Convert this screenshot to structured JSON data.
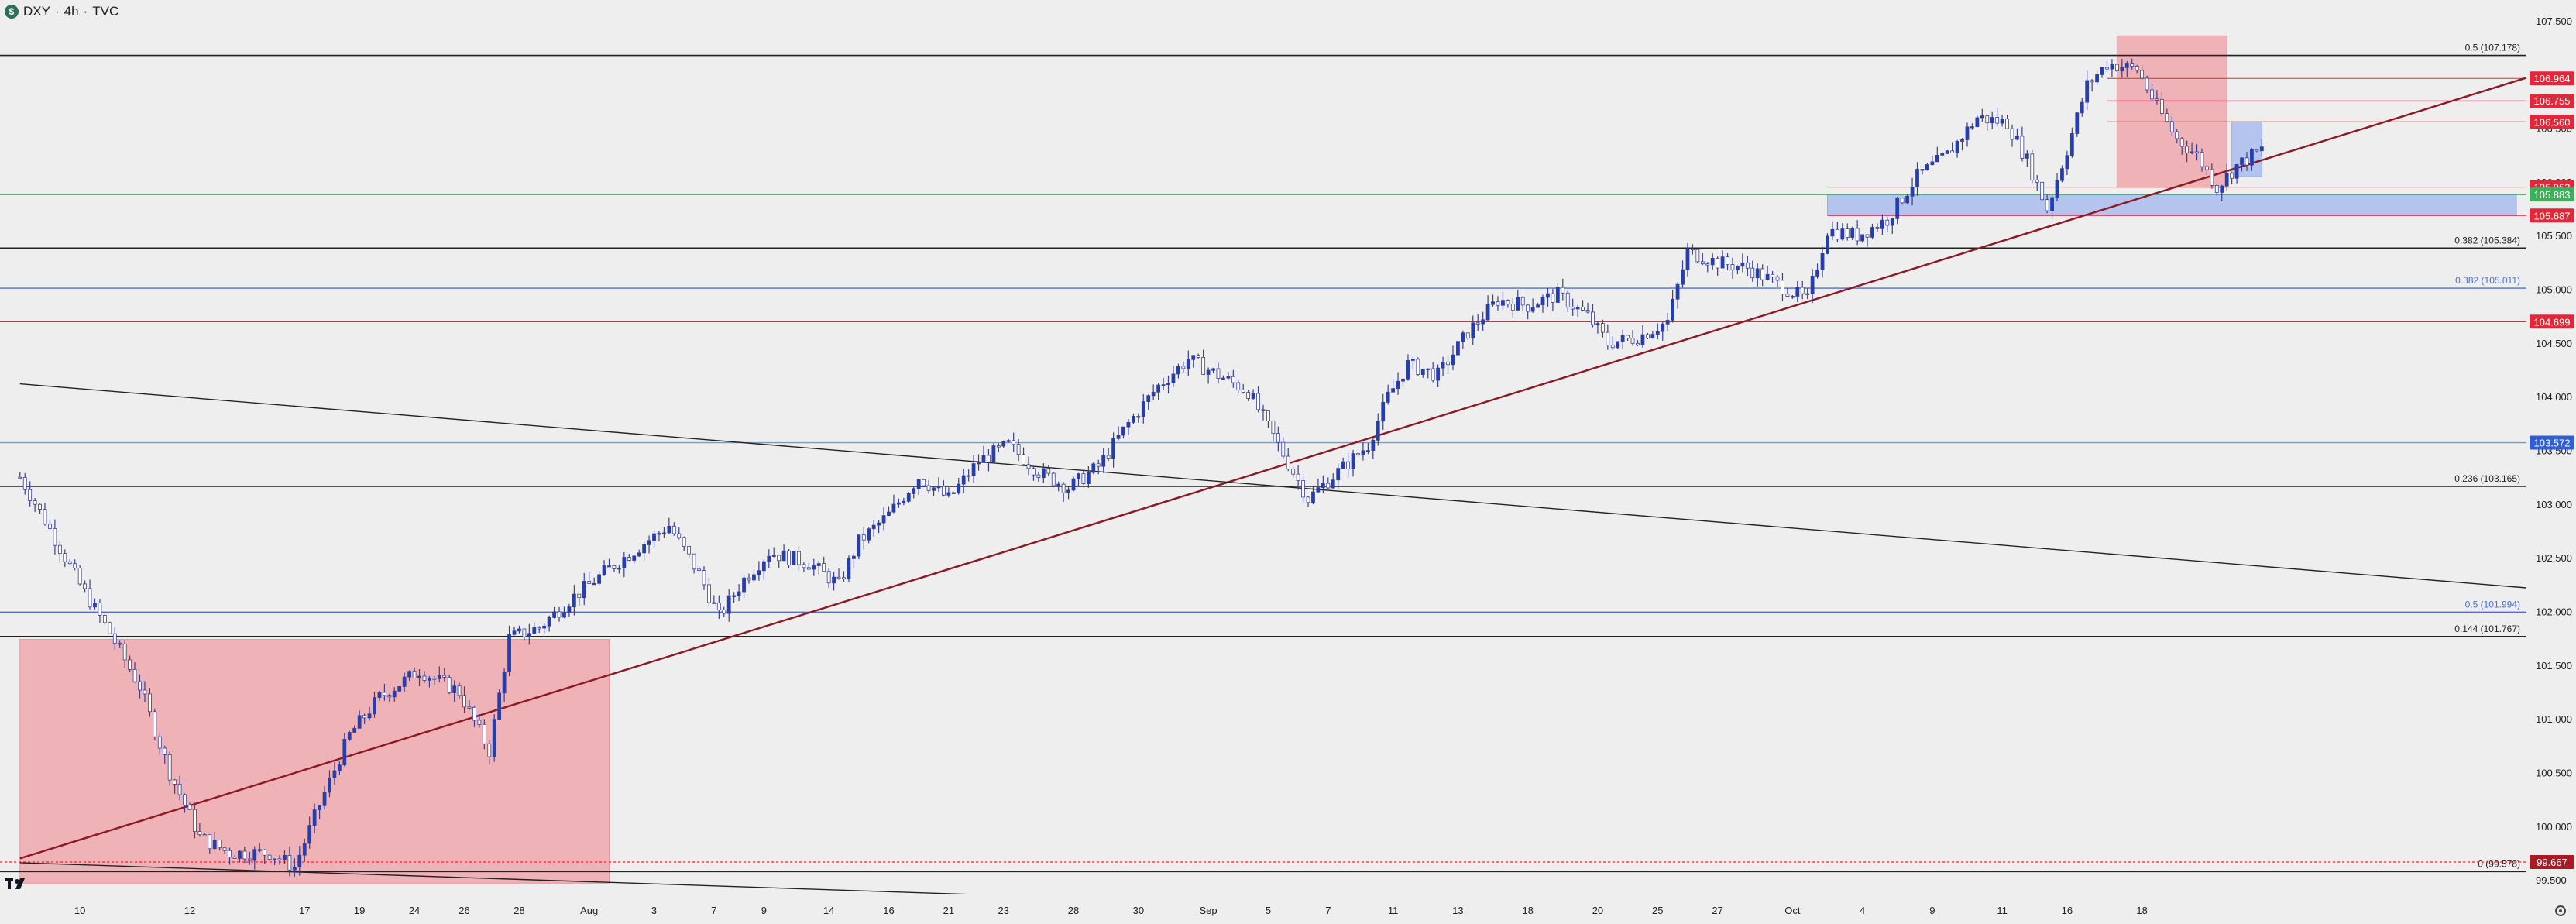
{
  "header": {
    "logo": "$",
    "symbol": "DXY",
    "separator1": "·",
    "timeframe": "4h",
    "separator2": "·",
    "source": "TVC"
  },
  "icons": {
    "watermark": "tradingview-logo-icon",
    "settings": "gear-icon"
  },
  "colors": {
    "background": "#eeeeee",
    "up_candle": "#1e3fb8",
    "down_candle": "#ffffff",
    "candle_outline": "#3a3f8f",
    "zone_red": "#f08a93",
    "zone_blue": "#8fa8ee",
    "trendline_maroon": "#8b1a24",
    "fib_black": "#222222",
    "fib_blue": "#4a6fd6",
    "level_red": "#e0283a",
    "level_green": "#3fae5a",
    "axis_text": "#222222"
  },
  "chart_data": {
    "type": "candlestick",
    "title": "DXY · 4h · TVC",
    "xlabel": "",
    "ylabel": "",
    "ylim": [
      99.4,
      107.55
    ],
    "grid": false,
    "x_ticks": [
      "10",
      "12",
      "17",
      "19",
      "24",
      "26",
      "28",
      "Aug",
      "3",
      "7",
      "9",
      "14",
      "16",
      "21",
      "23",
      "28",
      "30",
      "Sep",
      "5",
      "7",
      "11",
      "13",
      "18",
      "20",
      "25",
      "27",
      "Oct",
      "4",
      "9",
      "11",
      "16",
      "18"
    ],
    "y_ticks": [
      "107.500",
      "107.000",
      "106.500",
      "106.000",
      "105.500",
      "105.000",
      "104.500",
      "104.000",
      "103.500",
      "103.000",
      "102.500",
      "102.000",
      "101.500",
      "101.000",
      "100.500",
      "100.000",
      "99.500"
    ],
    "horizontal_levels": [
      {
        "price": 107.178,
        "label": "0.5 (107.178)",
        "color": "#222222"
      },
      {
        "price": 105.384,
        "label": "0.382 (105.384)",
        "color": "#222222"
      },
      {
        "price": 105.011,
        "label": "0.382 (105.011)",
        "color": "#4a6fd6"
      },
      {
        "price": 104.699,
        "color": "#e0283a"
      },
      {
        "price": 103.572,
        "color": "#7a95e0"
      },
      {
        "price": 103.165,
        "label": "0.236 (103.165)",
        "color": "#222222"
      },
      {
        "price": 101.994,
        "label": "0.5 (101.994)",
        "color": "#4a6fd6"
      },
      {
        "price": 101.767,
        "label": "0.144 (101.767)",
        "color": "#222222"
      },
      {
        "price": 99.578,
        "label": "0 (99.578)",
        "color": "#222222"
      },
      {
        "price": 105.883,
        "color": "#3fae5a"
      }
    ],
    "price_tags": [
      {
        "text": "106.964",
        "price": 106.964,
        "bg": "#e0283a"
      },
      {
        "text": "106.755",
        "price": 106.755,
        "bg": "#e0283a"
      },
      {
        "text": "106.560",
        "price": 106.56,
        "bg": "#e0283a"
      },
      {
        "text": "105.952",
        "price": 105.952,
        "bg": "#e0283a"
      },
      {
        "text": "105.883",
        "price": 105.883,
        "bg": "#3fae5a"
      },
      {
        "text": "105.687",
        "price": 105.687,
        "bg": "#e0283a"
      },
      {
        "text": "104.699",
        "price": 104.699,
        "bg": "#e0283a"
      },
      {
        "text": "103.572",
        "price": 103.572,
        "bg": "#2f5fd0"
      },
      {
        "text": "99.667",
        "price": 99.667,
        "bg": "#a81b26"
      }
    ],
    "zones": [
      {
        "name": "july-red-zone",
        "from_bar": 0,
        "to_bar": 118,
        "low": 99.47,
        "high": 101.74,
        "color": "#f08a93"
      },
      {
        "name": "support-blue-zone",
        "from_bar": 362,
        "to_bar": 500,
        "low": 105.687,
        "high": 105.883,
        "color": "#8fa8ee"
      },
      {
        "name": "october-red-zone",
        "from_bar": 420,
        "to_bar": 442,
        "low": 105.95,
        "high": 107.36,
        "color": "#f08a93"
      },
      {
        "name": "october-blue-box",
        "from_bar": 443,
        "to_bar": 449,
        "low": 106.05,
        "high": 106.56,
        "color": "#8fa8ee"
      }
    ],
    "trendlines": [
      {
        "name": "rising-support",
        "from": [
          0,
          99.7
        ],
        "to": [
          502,
          106.97
        ],
        "color": "#8b1a24"
      },
      {
        "name": "falling-resistance",
        "from": [
          0,
          104.12
        ],
        "to": [
          502,
          102.22
        ],
        "color": "#222222"
      },
      {
        "name": "lower-falling-line",
        "from": [
          0,
          99.66
        ],
        "to": [
          310,
          99.18
        ],
        "color": "#222222"
      }
    ],
    "price_path": [
      [
        0,
        103.25
      ],
      [
        5,
        102.85
      ],
      [
        12,
        102.25
      ],
      [
        18,
        101.8
      ],
      [
        24,
        101.3
      ],
      [
        30,
        100.5
      ],
      [
        36,
        99.9
      ],
      [
        42,
        99.75
      ],
      [
        50,
        99.75
      ],
      [
        55,
        99.62
      ],
      [
        60,
        100.2
      ],
      [
        66,
        100.85
      ],
      [
        72,
        101.2
      ],
      [
        80,
        101.45
      ],
      [
        88,
        101.25
      ],
      [
        94,
        100.7
      ],
      [
        98,
        101.75
      ],
      [
        104,
        101.85
      ],
      [
        110,
        102.1
      ],
      [
        118,
        102.4
      ],
      [
        124,
        102.6
      ],
      [
        130,
        102.8
      ],
      [
        136,
        102.35
      ],
      [
        140,
        101.95
      ],
      [
        145,
        102.3
      ],
      [
        150,
        102.55
      ],
      [
        158,
        102.45
      ],
      [
        164,
        102.25
      ],
      [
        168,
        102.65
      ],
      [
        174,
        102.9
      ],
      [
        180,
        103.25
      ],
      [
        186,
        103.05
      ],
      [
        192,
        103.4
      ],
      [
        198,
        103.55
      ],
      [
        204,
        103.3
      ],
      [
        210,
        103.15
      ],
      [
        216,
        103.35
      ],
      [
        222,
        103.75
      ],
      [
        228,
        104.1
      ],
      [
        234,
        104.35
      ],
      [
        240,
        104.2
      ],
      [
        246,
        104.05
      ],
      [
        252,
        103.55
      ],
      [
        258,
        103.05
      ],
      [
        264,
        103.3
      ],
      [
        270,
        103.55
      ],
      [
        274,
        104.0
      ],
      [
        278,
        104.3
      ],
      [
        284,
        104.2
      ],
      [
        290,
        104.6
      ],
      [
        296,
        104.9
      ],
      [
        302,
        104.85
      ],
      [
        308,
        104.95
      ],
      [
        314,
        104.75
      ],
      [
        318,
        104.5
      ],
      [
        324,
        104.55
      ],
      [
        330,
        104.7
      ],
      [
        334,
        105.35
      ],
      [
        340,
        105.25
      ],
      [
        346,
        105.2
      ],
      [
        352,
        105.05
      ],
      [
        358,
        104.9
      ],
      [
        362,
        105.55
      ],
      [
        368,
        105.5
      ],
      [
        374,
        105.65
      ],
      [
        380,
        106.05
      ],
      [
        386,
        106.25
      ],
      [
        392,
        106.6
      ],
      [
        398,
        106.55
      ],
      [
        402,
        106.2
      ],
      [
        406,
        105.75
      ],
      [
        410,
        106.3
      ],
      [
        414,
        106.9
      ],
      [
        418,
        107.1
      ],
      [
        424,
        107.05
      ],
      [
        428,
        106.7
      ],
      [
        432,
        106.4
      ],
      [
        436,
        106.25
      ],
      [
        440,
        105.95
      ],
      [
        444,
        106.15
      ],
      [
        449,
        106.3
      ]
    ],
    "bars_total": 452,
    "x_bar_range": [
      -4,
      502
    ],
    "x_tick_bars": [
      12,
      34,
      57,
      68,
      79,
      89,
      100,
      114,
      127,
      139,
      149,
      162,
      174,
      186,
      197,
      211,
      224,
      238,
      250,
      262,
      275,
      288,
      302,
      316,
      328,
      340,
      355,
      369,
      383,
      397,
      410,
      425
    ]
  }
}
